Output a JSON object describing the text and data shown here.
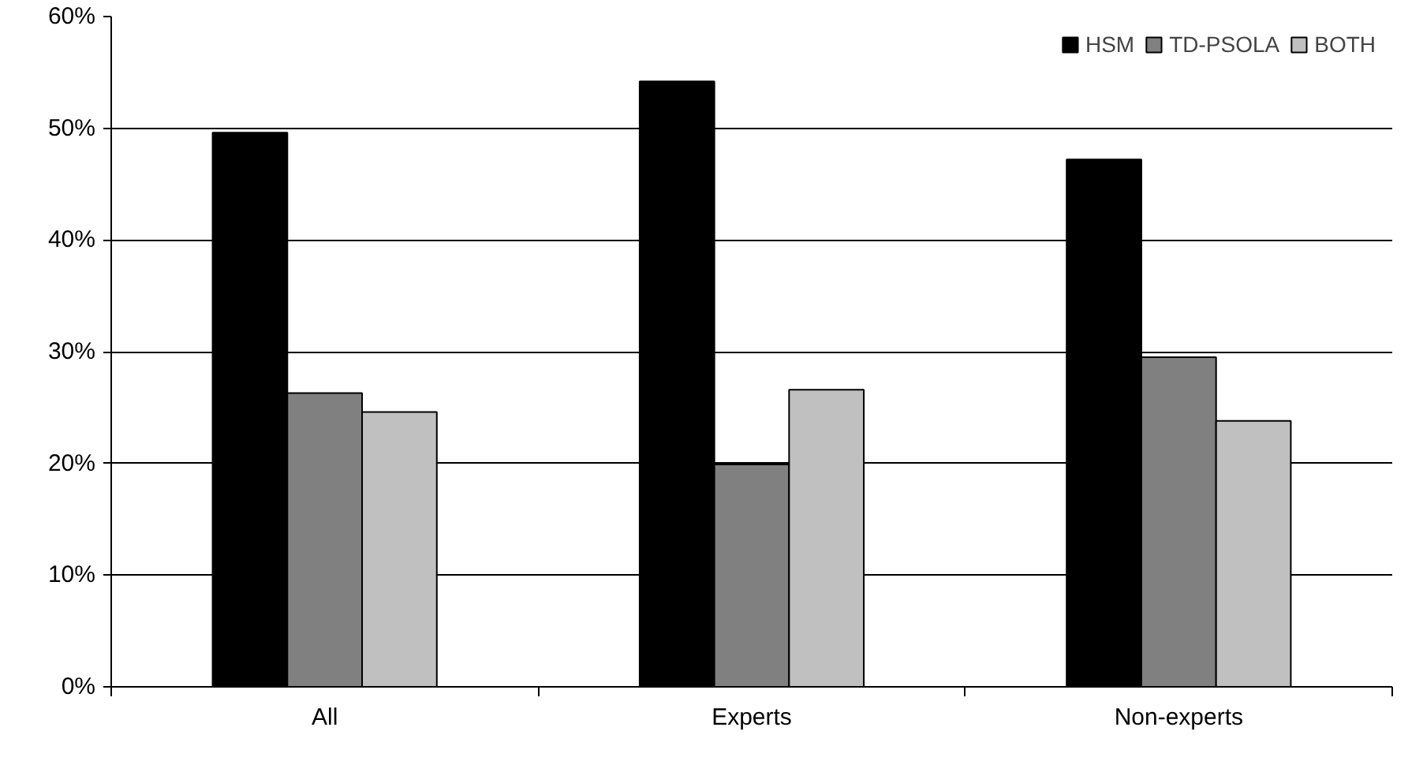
{
  "chart_data": {
    "type": "bar",
    "categories": [
      "All",
      "Experts",
      "Non-experts"
    ],
    "series": [
      {
        "name": "HSM",
        "color": "#000000",
        "values": [
          49.6,
          54.2,
          47.2
        ]
      },
      {
        "name": "TD-PSOLA",
        "color": "#808080",
        "values": [
          26.3,
          19.9,
          29.5
        ]
      },
      {
        "name": "BOTH",
        "color": "#c0c0c0",
        "values": [
          24.6,
          26.6,
          23.8
        ]
      }
    ],
    "ylim": [
      0,
      60
    ],
    "yticks": [
      {
        "value": 0,
        "label": "0%"
      },
      {
        "value": 10,
        "label": "10%"
      },
      {
        "value": 20,
        "label": "20%"
      },
      {
        "value": 30,
        "label": "30%"
      },
      {
        "value": 40,
        "label": "40%"
      },
      {
        "value": 50,
        "label": "50%"
      },
      {
        "value": 60,
        "label": "60%"
      }
    ],
    "grid": "y",
    "legend": "top right"
  }
}
